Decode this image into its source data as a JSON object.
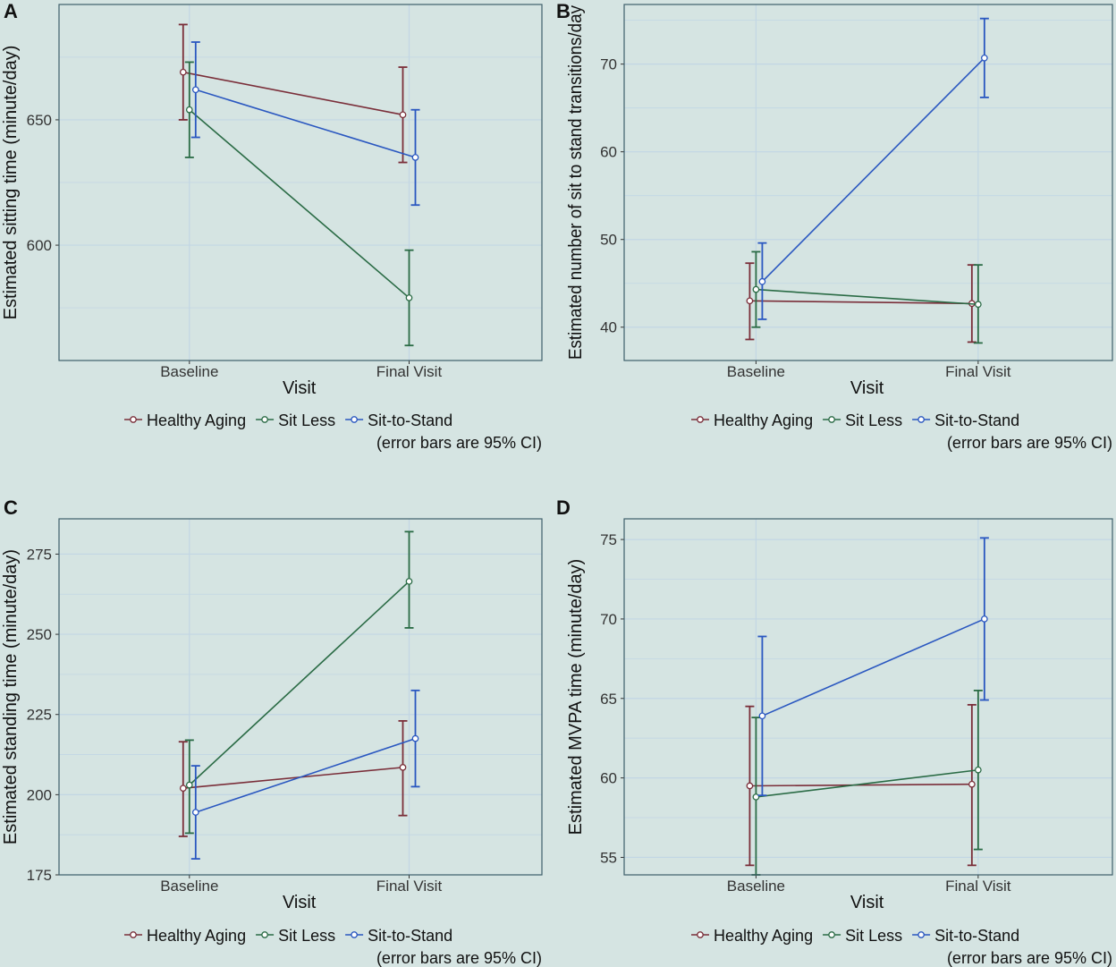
{
  "figure": {
    "background": "#d5e4e2",
    "plot_background": "#d5e4e2",
    "grid_color": "#c2d6e4",
    "colors": {
      "Healthy Aging": "#7a2e39",
      "Sit Less": "#2a6b45",
      "Sit-to-Stand": "#2a57c0"
    },
    "legend": {
      "items": [
        "Healthy Aging",
        "Sit Less",
        "Sit-to-Stand"
      ],
      "note": "(error bars are 95% CI)"
    }
  },
  "chart_data": [
    {
      "panel": "A",
      "type": "line",
      "xlabel": "Visit",
      "ylabel": "Estimated sitting time (minute/day)",
      "categories": [
        "Baseline",
        "Final Visit"
      ],
      "yticks": [
        600,
        650
      ],
      "ylim": [
        554,
        696
      ],
      "series": [
        {
          "name": "Healthy Aging",
          "values": [
            669,
            652
          ],
          "ci_low": [
            650,
            633
          ],
          "ci_high": [
            688,
            671
          ]
        },
        {
          "name": "Sit Less",
          "values": [
            654,
            579
          ],
          "ci_low": [
            635,
            560
          ],
          "ci_high": [
            673,
            598
          ]
        },
        {
          "name": "Sit-to-Stand",
          "values": [
            662,
            635
          ],
          "ci_low": [
            643,
            616
          ],
          "ci_high": [
            681,
            654
          ]
        }
      ]
    },
    {
      "panel": "B",
      "type": "line",
      "xlabel": "Visit",
      "ylabel": "Estimated number of sit to stand transitions/day",
      "categories": [
        "Baseline",
        "Final Visit"
      ],
      "yticks": [
        40,
        50,
        60,
        70
      ],
      "ylim": [
        36.2,
        76.8
      ],
      "series": [
        {
          "name": "Healthy Aging",
          "values": [
            43.0,
            42.7
          ],
          "ci_low": [
            38.6,
            38.3
          ],
          "ci_high": [
            47.3,
            47.1
          ]
        },
        {
          "name": "Sit Less",
          "values": [
            44.3,
            42.6
          ],
          "ci_low": [
            40.0,
            38.2
          ],
          "ci_high": [
            48.6,
            47.1
          ]
        },
        {
          "name": "Sit-to-Stand",
          "values": [
            45.2,
            70.7
          ],
          "ci_low": [
            40.9,
            66.2
          ],
          "ci_high": [
            49.6,
            75.2
          ]
        }
      ]
    },
    {
      "panel": "C",
      "type": "line",
      "xlabel": "Visit",
      "ylabel": "Estimated standing time (minute/day)",
      "categories": [
        "Baseline",
        "Final Visit"
      ],
      "yticks": [
        175,
        200,
        225,
        250,
        275
      ],
      "ylim": [
        175,
        286
      ],
      "series": [
        {
          "name": "Healthy Aging",
          "values": [
            202,
            208.5
          ],
          "ci_low": [
            187,
            193.5
          ],
          "ci_high": [
            216.5,
            223
          ]
        },
        {
          "name": "Sit Less",
          "values": [
            203,
            266.5
          ],
          "ci_low": [
            188,
            252
          ],
          "ci_high": [
            217,
            282
          ]
        },
        {
          "name": "Sit-to-Stand",
          "values": [
            194.5,
            217.5
          ],
          "ci_low": [
            180,
            202.5
          ],
          "ci_high": [
            209,
            232.5
          ]
        }
      ]
    },
    {
      "panel": "D",
      "type": "line",
      "xlabel": "Visit",
      "ylabel": "Estimated MVPA time (minute/day)",
      "categories": [
        "Baseline",
        "Final Visit"
      ],
      "yticks": [
        55,
        60,
        65,
        70,
        75
      ],
      "ylim": [
        53.9,
        76.3
      ],
      "series": [
        {
          "name": "Healthy Aging",
          "values": [
            59.5,
            59.6
          ],
          "ci_low": [
            54.5,
            54.5
          ],
          "ci_high": [
            64.5,
            64.6
          ]
        },
        {
          "name": "Sit Less",
          "values": [
            58.8,
            60.5
          ],
          "ci_low": [
            53.9,
            55.5
          ],
          "ci_high": [
            63.8,
            65.5
          ]
        },
        {
          "name": "Sit-to-Stand",
          "values": [
            63.9,
            70.0
          ],
          "ci_low": [
            58.9,
            64.9
          ],
          "ci_high": [
            68.9,
            75.1
          ]
        }
      ]
    }
  ]
}
